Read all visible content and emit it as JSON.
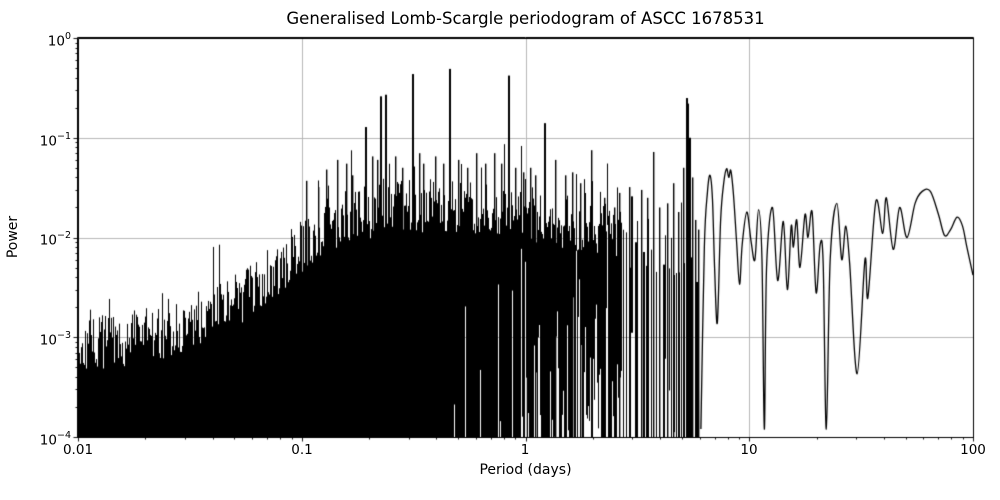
{
  "chart_data": {
    "type": "line",
    "title": "Generalised Lomb-Scargle periodogram of ASCC 1678531",
    "xlabel": "Period (days)",
    "ylabel": "Power",
    "xscale": "log",
    "yscale": "log",
    "xlim": [
      0.01,
      100
    ],
    "ylim": [
      0.0001,
      1
    ],
    "grid": true,
    "legend": "none",
    "line_color": "#000000",
    "grid_color": "#b0b0b0",
    "background": "#ffffff",
    "xticks": [
      {
        "value": 0.01,
        "label": "0.01"
      },
      {
        "value": 0.1,
        "label": "0.1"
      },
      {
        "value": 1,
        "label": "1"
      },
      {
        "value": 10,
        "label": "10"
      },
      {
        "value": 100,
        "label": "100"
      }
    ],
    "yticks": [
      {
        "value": 1,
        "base": "10",
        "exp": "0"
      },
      {
        "value": 0.1,
        "base": "10",
        "exp": "−1"
      },
      {
        "value": 0.01,
        "base": "10",
        "exp": "−2"
      },
      {
        "value": 0.001,
        "base": "10",
        "exp": "−3"
      },
      {
        "value": 0.0001,
        "base": "10",
        "exp": "−4"
      }
    ],
    "series_model": {
      "dense_range": [
        0.01,
        2.66
      ],
      "discrete_range": [
        2.66,
        6.05
      ],
      "envelope": [
        [
          0.01,
          0.00055
        ],
        [
          0.011,
          0.00085
        ],
        [
          0.0125,
          0.001
        ],
        [
          0.014,
          0.0009
        ],
        [
          0.016,
          0.00095
        ],
        [
          0.018,
          0.0011
        ],
        [
          0.021,
          0.00115
        ],
        [
          0.025,
          0.0011
        ],
        [
          0.03,
          0.0014
        ],
        [
          0.036,
          0.0017
        ],
        [
          0.043,
          0.002
        ],
        [
          0.05,
          0.0025
        ],
        [
          0.06,
          0.0032
        ],
        [
          0.07,
          0.0042
        ],
        [
          0.082,
          0.0055
        ],
        [
          0.095,
          0.008
        ],
        [
          0.11,
          0.011
        ],
        [
          0.13,
          0.014
        ],
        [
          0.16,
          0.017
        ],
        [
          0.2,
          0.0195
        ],
        [
          0.25,
          0.021
        ],
        [
          0.32,
          0.022
        ],
        [
          0.42,
          0.023
        ],
        [
          0.55,
          0.022
        ],
        [
          0.7,
          0.021
        ],
        [
          0.9,
          0.0195
        ],
        [
          1.1,
          0.018
        ],
        [
          1.4,
          0.016
        ],
        [
          1.8,
          0.014
        ],
        [
          2.2,
          0.0125
        ],
        [
          2.6,
          0.012
        ],
        [
          3.2,
          0.012
        ],
        [
          4.0,
          0.0105
        ],
        [
          5.0,
          0.009
        ],
        [
          6.0,
          0.008
        ]
      ],
      "gap_ramp": [
        [
          0.35,
          0
        ],
        [
          0.9,
          0.3
        ],
        [
          1.8,
          0.65
        ],
        [
          2.66,
          0.88
        ]
      ],
      "major_peaks": [
        [
          0.192,
          0.128
        ],
        [
          0.224,
          0.26
        ],
        [
          0.236,
          0.27
        ],
        [
          0.312,
          0.435
        ],
        [
          0.455,
          0.49
        ],
        [
          0.836,
          0.42
        ],
        [
          1.215,
          0.14
        ],
        [
          1.97,
          0.075
        ]
      ],
      "medium_peaks": [
        [
          0.105,
          0.037
        ],
        [
          0.118,
          0.032
        ],
        [
          0.128,
          0.048
        ],
        [
          0.143,
          0.06
        ],
        [
          0.158,
          0.055
        ],
        [
          0.168,
          0.042
        ],
        [
          0.205,
          0.065
        ],
        [
          0.218,
          0.06
        ],
        [
          0.26,
          0.065
        ],
        [
          0.28,
          0.05
        ],
        [
          0.335,
          0.07
        ],
        [
          0.35,
          0.055
        ],
        [
          0.395,
          0.065
        ],
        [
          0.43,
          0.055
        ],
        [
          0.5,
          0.06
        ],
        [
          0.55,
          0.05
        ],
        [
          0.6,
          0.07
        ],
        [
          0.66,
          0.055
        ],
        [
          0.72,
          0.07
        ],
        [
          0.78,
          0.055
        ],
        [
          0.9,
          0.05
        ],
        [
          0.97,
          0.045
        ],
        [
          1.05,
          0.05
        ],
        [
          1.1,
          0.042
        ],
        [
          1.35,
          0.06
        ],
        [
          1.5,
          0.042
        ],
        [
          1.62,
          0.045
        ],
        [
          1.75,
          0.035
        ],
        [
          2.24,
          0.025
        ],
        [
          2.49,
          0.02
        ]
      ],
      "discrete_peaks": [
        [
          2.62,
          0.028
        ],
        [
          2.9,
          0.032
        ],
        [
          3.27,
          0.03
        ],
        [
          3.5,
          0.025
        ],
        [
          3.71,
          0.072
        ],
        [
          3.95,
          0.02
        ],
        [
          4.3,
          0.022
        ],
        [
          4.55,
          0.035
        ],
        [
          4.8,
          0.018
        ],
        [
          5.05,
          0.05
        ],
        [
          5.2,
          0.25
        ],
        [
          5.27,
          0.22
        ],
        [
          5.37,
          0.1
        ],
        [
          5.55,
          0.04
        ],
        [
          5.75,
          0.015
        ],
        [
          5.92,
          0.012
        ]
      ],
      "tail": [
        [
          6.08,
          0.00012
        ],
        [
          6.3,
          0.008
        ],
        [
          6.5,
          0.028
        ],
        [
          6.68,
          0.042
        ],
        [
          6.85,
          0.024
        ],
        [
          7.0,
          0.005
        ],
        [
          7.2,
          0.0014
        ],
        [
          7.45,
          0.015
        ],
        [
          7.7,
          0.036
        ],
        [
          7.92,
          0.049
        ],
        [
          8.1,
          0.04
        ],
        [
          8.27,
          0.047
        ],
        [
          8.5,
          0.027
        ],
        [
          8.78,
          0.009
        ],
        [
          9.05,
          0.0034
        ],
        [
          9.3,
          0.0085
        ],
        [
          9.75,
          0.018
        ],
        [
          10.2,
          0.009
        ],
        [
          10.6,
          0.006
        ],
        [
          11.0,
          0.019
        ],
        [
          11.4,
          0.006
        ],
        [
          11.68,
          0.00012
        ],
        [
          11.95,
          0.005
        ],
        [
          12.7,
          0.02
        ],
        [
          13.4,
          0.0037
        ],
        [
          14.2,
          0.0145
        ],
        [
          14.8,
          0.003
        ],
        [
          15.4,
          0.013
        ],
        [
          15.75,
          0.008
        ],
        [
          16.3,
          0.015
        ],
        [
          16.85,
          0.005
        ],
        [
          17.75,
          0.017
        ],
        [
          18.3,
          0.01
        ],
        [
          19.1,
          0.018
        ],
        [
          19.9,
          0.0028
        ],
        [
          20.75,
          0.0085
        ],
        [
          21.4,
          0.0055
        ],
        [
          22.1,
          0.00012
        ],
        [
          23.0,
          0.006
        ],
        [
          24.65,
          0.022
        ],
        [
          25.9,
          0.006
        ],
        [
          27.0,
          0.013
        ],
        [
          28.1,
          0.0055
        ],
        [
          30.35,
          0.00043
        ],
        [
          32.9,
          0.006
        ],
        [
          33.9,
          0.0025
        ],
        [
          36.8,
          0.023
        ],
        [
          39.5,
          0.011
        ],
        [
          41.0,
          0.025
        ],
        [
          44.0,
          0.0076
        ],
        [
          47.0,
          0.02
        ],
        [
          50.7,
          0.01
        ],
        [
          55.1,
          0.022
        ],
        [
          59.3,
          0.029
        ],
        [
          64.5,
          0.029
        ],
        [
          70.1,
          0.017
        ],
        [
          74.6,
          0.0105
        ],
        [
          79.4,
          0.012
        ],
        [
          84.9,
          0.016
        ],
        [
          89.8,
          0.013
        ],
        [
          93.9,
          0.008
        ],
        [
          100,
          0.0042
        ]
      ],
      "render_hints": {
        "seed": 7,
        "jitter_dex": 0.55,
        "jitter_center": 0.55,
        "spike_prob": 0.06,
        "spike_extra_dex": 0.45,
        "gap_depth_dex": [
          0.6,
          1.9
        ],
        "discrete_bottom_prob": 0.8
      }
    }
  }
}
